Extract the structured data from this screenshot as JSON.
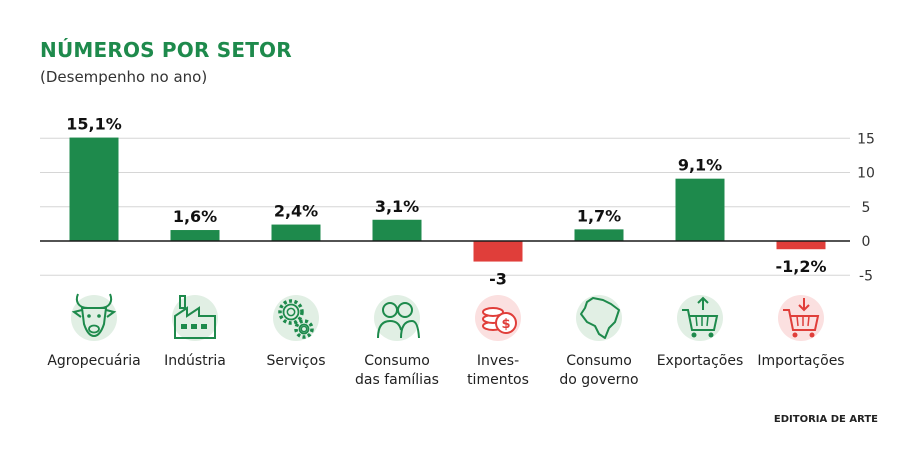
{
  "header": {
    "title": "NÚMEROS POR SETOR",
    "subtitle": "(Desempenho no ano)"
  },
  "credit": "EDITORIA DE ARTE",
  "colors": {
    "positive": "#1e8a4c",
    "negative": "#e03e3a",
    "icon_green_bg": "#e1efe4",
    "icon_red_bg": "#fbe0e0"
  },
  "chart_data": {
    "type": "bar",
    "title": "NÚMEROS POR SETOR",
    "subtitle": "(Desempenho no ano)",
    "categories": [
      "Agropecuária",
      "Indústria",
      "Serviços",
      "Consumo das famílias",
      "Inves-timentos",
      "Consumo do governo",
      "Exportações",
      "Importações"
    ],
    "category_lines": [
      [
        "Agropecuária"
      ],
      [
        "Indústria"
      ],
      [
        "Serviços"
      ],
      [
        "Consumo",
        "das famílias"
      ],
      [
        "Inves-",
        "timentos"
      ],
      [
        "Consumo",
        "do governo"
      ],
      [
        "Exportações"
      ],
      [
        "Importações"
      ]
    ],
    "values": [
      15.1,
      1.6,
      2.4,
      3.1,
      -3,
      1.7,
      9.1,
      -1.2
    ],
    "data_labels": [
      "15,1%",
      "1,6%",
      "2,4%",
      "3,1%",
      "-3",
      "1,7%",
      "9,1%",
      "-1,2%"
    ],
    "icons": [
      "bull-icon",
      "factory-icon",
      "gears-icon",
      "family-icon",
      "coins-dollar-icon",
      "brazil-map-icon",
      "cart-export-icon",
      "cart-import-icon"
    ],
    "yticks": [
      15,
      10,
      5,
      0,
      -5
    ],
    "ylim": [
      -5,
      15
    ],
    "ylabel": "",
    "xlabel": "",
    "grid": true
  }
}
